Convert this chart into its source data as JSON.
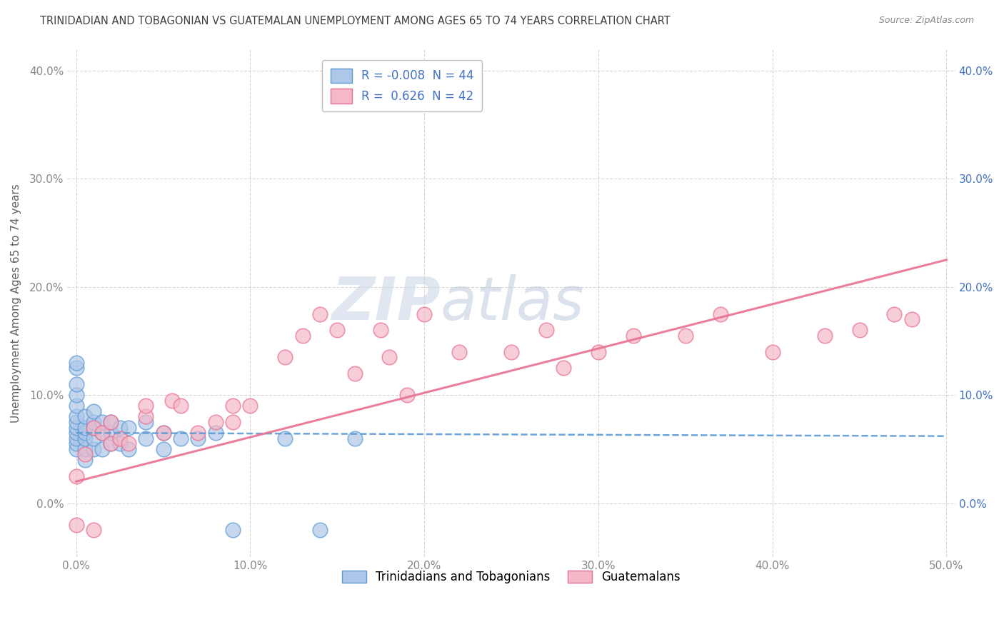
{
  "title": "TRINIDADIAN AND TOBAGONIAN VS GUATEMALAN UNEMPLOYMENT AMONG AGES 65 TO 74 YEARS CORRELATION CHART",
  "source": "Source: ZipAtlas.com",
  "ylabel": "Unemployment Among Ages 65 to 74 years",
  "xlim": [
    -0.005,
    0.505
  ],
  "ylim": [
    -0.05,
    0.42
  ],
  "xticks": [
    0.0,
    0.1,
    0.2,
    0.3,
    0.4,
    0.5
  ],
  "xticklabels": [
    "0.0%",
    "10.0%",
    "20.0%",
    "30.0%",
    "40.0%",
    "50.0%"
  ],
  "yticks": [
    0.0,
    0.1,
    0.2,
    0.3,
    0.4
  ],
  "yticklabels": [
    "0.0%",
    "10.0%",
    "20.0%",
    "30.0%",
    "40.0%"
  ],
  "right_yticklabels": [
    "0.0%",
    "10.0%",
    "20.0%",
    "30.0%",
    "40.0%"
  ],
  "legend_line1": "R = -0.008  N = 44",
  "legend_line2": "R =  0.626  N = 42",
  "legend_labels_bottom": [
    "Trinidadians and Tobagonians",
    "Guatemalans"
  ],
  "background_color": "#ffffff",
  "grid_color": "#cccccc",
  "blue_scatter_color": "#aec6e8",
  "blue_scatter_edge": "#5b9bd5",
  "pink_scatter_color": "#f4b8c8",
  "pink_scatter_edge": "#e87090",
  "blue_line_color": "#5b9bd5",
  "pink_line_color": "#e87090",
  "title_color": "#404040",
  "axis_label_color": "#606060",
  "tick_color": "#888888",
  "right_tick_color": "#4472c4",
  "blue_scatter_x": [
    0.0,
    0.0,
    0.0,
    0.0,
    0.0,
    0.0,
    0.0,
    0.0,
    0.0,
    0.0,
    0.0,
    0.0,
    0.005,
    0.005,
    0.005,
    0.005,
    0.005,
    0.005,
    0.01,
    0.01,
    0.01,
    0.01,
    0.01,
    0.015,
    0.015,
    0.015,
    0.02,
    0.02,
    0.02,
    0.025,
    0.025,
    0.03,
    0.03,
    0.04,
    0.04,
    0.05,
    0.05,
    0.06,
    0.07,
    0.08,
    0.09,
    0.12,
    0.14,
    0.16
  ],
  "blue_scatter_y": [
    0.05,
    0.055,
    0.06,
    0.065,
    0.07,
    0.075,
    0.08,
    0.09,
    0.1,
    0.11,
    0.125,
    0.13,
    0.04,
    0.05,
    0.06,
    0.065,
    0.07,
    0.08,
    0.05,
    0.06,
    0.07,
    0.075,
    0.085,
    0.05,
    0.065,
    0.075,
    0.055,
    0.065,
    0.075,
    0.055,
    0.07,
    0.05,
    0.07,
    0.06,
    0.075,
    0.05,
    0.065,
    0.06,
    0.06,
    0.065,
    -0.025,
    0.06,
    -0.025,
    0.06
  ],
  "pink_scatter_x": [
    0.0,
    0.0,
    0.005,
    0.01,
    0.01,
    0.015,
    0.02,
    0.02,
    0.025,
    0.03,
    0.04,
    0.04,
    0.05,
    0.055,
    0.06,
    0.07,
    0.09,
    0.1,
    0.12,
    0.13,
    0.14,
    0.15,
    0.16,
    0.175,
    0.2,
    0.22,
    0.25,
    0.27,
    0.3,
    0.32,
    0.35,
    0.37,
    0.4,
    0.43,
    0.45,
    0.47,
    0.48,
    0.08,
    0.09,
    0.18,
    0.19,
    0.28
  ],
  "pink_scatter_y": [
    -0.02,
    0.025,
    0.045,
    0.07,
    -0.025,
    0.065,
    0.075,
    0.055,
    0.06,
    0.055,
    0.08,
    0.09,
    0.065,
    0.095,
    0.09,
    0.065,
    0.09,
    0.09,
    0.135,
    0.155,
    0.175,
    0.16,
    0.12,
    0.16,
    0.175,
    0.14,
    0.14,
    0.16,
    0.14,
    0.155,
    0.155,
    0.175,
    0.14,
    0.155,
    0.16,
    0.175,
    0.17,
    0.075,
    0.075,
    0.135,
    0.1,
    0.125
  ],
  "blue_trend_x": [
    0.0,
    0.5
  ],
  "blue_trend_y": [
    0.065,
    0.062
  ],
  "pink_trend_x": [
    0.0,
    0.5
  ],
  "pink_trend_y": [
    0.02,
    0.225
  ]
}
